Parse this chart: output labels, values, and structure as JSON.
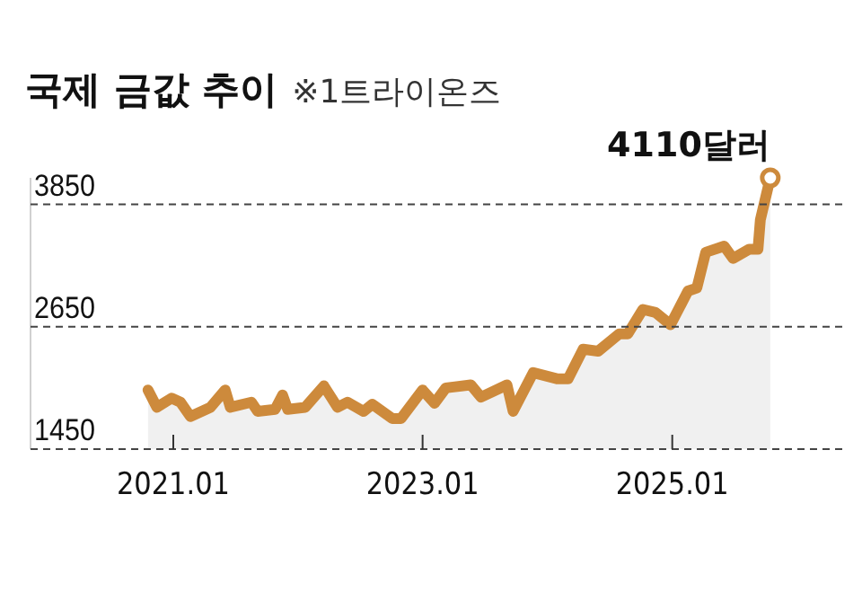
{
  "chart_data": {
    "type": "area",
    "title": "국제 금값 추이",
    "subtitle": "※1트라이온즈",
    "x": [
      "2020-10-19",
      "2020-11-14",
      "2020-12-27",
      "2021-01-22",
      "2021-02-20",
      "2021-04-20",
      "2021-06-02",
      "2021-06-17",
      "2021-08-18",
      "2021-09-05",
      "2021-10-26",
      "2021-11-17",
      "2021-12-02",
      "2022-01-22",
      "2022-03-18",
      "2022-04-27",
      "2022-05-26",
      "2022-07-12",
      "2022-08-07",
      "2022-10-04",
      "2022-10-30",
      "2023-01-01",
      "2023-02-05",
      "2023-03-10",
      "2023-05-22",
      "2023-06-21",
      "2023-09-05",
      "2023-09-23",
      "2023-11-21",
      "2024-01-29",
      "2024-03-02",
      "2024-04-15",
      "2024-05-29",
      "2024-07-30",
      "2024-08-24",
      "2024-10-07",
      "2024-11-13",
      "2024-12-27",
      "2025-02-16",
      "2025-03-14",
      "2025-04-09",
      "2025-06-02",
      "2025-06-28",
      "2025-08-14",
      "2025-09-09",
      "2025-09-16",
      "2025-10-15"
    ],
    "series": [
      {
        "color": "#cd8a3c",
        "values": [
          2030,
          1860,
          1950,
          1910,
          1770,
          1860,
          2030,
          1860,
          1910,
          1820,
          1840,
          1980,
          1840,
          1860,
          2070,
          1860,
          1910,
          1820,
          1890,
          1750,
          1750,
          2030,
          1900,
          2050,
          2080,
          1960,
          2080,
          1820,
          2200,
          2140,
          2140,
          2430,
          2410,
          2580,
          2580,
          2820,
          2790,
          2670,
          3000,
          3030,
          3380,
          3440,
          3320,
          3410,
          3410,
          3700,
          4110
        ]
      }
    ],
    "xlim": [
      "2019-11-10",
      "2026-05-19"
    ],
    "xticks": [
      {
        "value": "2021-01",
        "label": "2021.01"
      },
      {
        "value": "2023-01",
        "label": "2023.01"
      },
      {
        "value": "2025-01",
        "label": "2025.01"
      }
    ],
    "ylim": [
      1450,
      4110
    ],
    "yticks": [
      1450,
      2650,
      3850
    ],
    "grid": "y",
    "marker": "none",
    "line_style": "solid",
    "annotations": [
      {
        "text": "4110달러",
        "x": "2025-10-15",
        "y": 4110
      }
    ]
  }
}
